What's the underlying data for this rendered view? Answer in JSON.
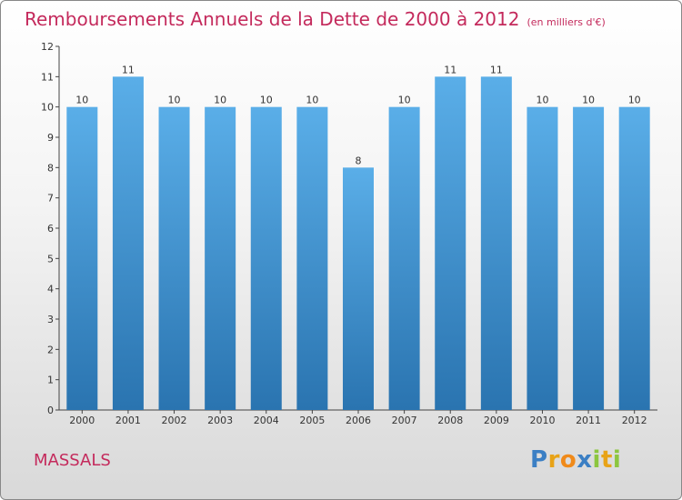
{
  "title": "Remboursements Annuels de la Dette de 2000 à 2012",
  "subtitle": "(en milliers d'€)",
  "commune": "MASSALS",
  "logo": {
    "letters": [
      "P",
      "r",
      "o",
      "x",
      "i",
      "t",
      "i"
    ],
    "colors": [
      "#3b7fc4",
      "#e8a317",
      "#f08a1a",
      "#3b7fc4",
      "#8cc63f",
      "#e8a317",
      "#8cc63f"
    ]
  },
  "colors": {
    "bar_top": "#5aaee8",
    "bar_bottom": "#2a74b0",
    "title": "#c42a5c"
  },
  "chart_data": {
    "type": "bar",
    "title": "Remboursements Annuels de la Dette de 2000 à 2012",
    "categories": [
      "2000",
      "2001",
      "2002",
      "2003",
      "2004",
      "2005",
      "2006",
      "2007",
      "2008",
      "2009",
      "2010",
      "2011",
      "2012"
    ],
    "values": [
      10,
      11,
      10,
      10,
      10,
      10,
      8,
      10,
      11,
      11,
      10,
      10,
      10
    ],
    "ylim": [
      0,
      12
    ],
    "yticks": [
      0,
      1,
      2,
      3,
      4,
      5,
      6,
      7,
      8,
      9,
      10,
      11,
      12
    ],
    "grid": false,
    "xlabel": "",
    "ylabel": ""
  }
}
